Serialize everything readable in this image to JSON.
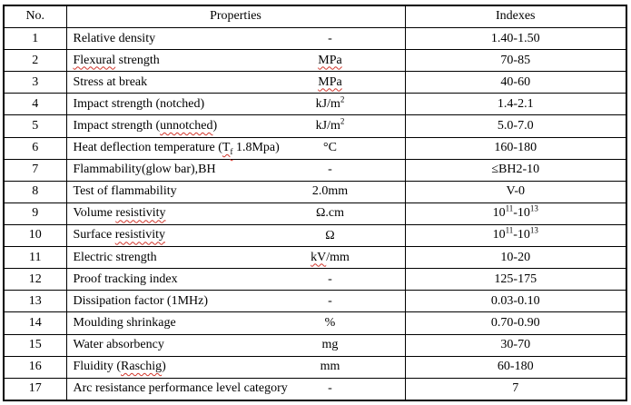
{
  "colors": {
    "background": "#ffffff",
    "text": "#000000",
    "border": "#000000",
    "spellcheck_squiggle": "#d1352b"
  },
  "table": {
    "headers": {
      "no": "No.",
      "properties": "Properties",
      "indexes": "Indexes"
    },
    "rows": [
      {
        "no": "1",
        "name": [
          {
            "t": "Relative density"
          }
        ],
        "unit": [
          {
            "t": "-"
          }
        ],
        "index": [
          {
            "t": "1.40-1.50"
          }
        ]
      },
      {
        "no": "2",
        "name": [
          {
            "t": "Flexural",
            "squiggle": true
          },
          {
            "t": " strength"
          }
        ],
        "unit": [
          {
            "t": "MPa",
            "squiggle": true
          }
        ],
        "index": [
          {
            "t": "70-85"
          }
        ]
      },
      {
        "no": "3",
        "name": [
          {
            "t": "Stress at break"
          }
        ],
        "unit": [
          {
            "t": "MPa",
            "squiggle": true
          }
        ],
        "index": [
          {
            "t": "40-60"
          }
        ]
      },
      {
        "no": "4",
        "name": [
          {
            "t": "Impact strength (notched)"
          }
        ],
        "unit": [
          {
            "t": "kJ/m"
          },
          {
            "t": "2",
            "sup": true
          }
        ],
        "index": [
          {
            "t": "1.4-2.1"
          }
        ]
      },
      {
        "no": "5",
        "name": [
          {
            "t": "Impact strength ("
          },
          {
            "t": "unnotched",
            "squiggle": true
          },
          {
            "t": ")"
          }
        ],
        "unit": [
          {
            "t": "kJ/m"
          },
          {
            "t": "2",
            "sup": true
          }
        ],
        "index": [
          {
            "t": "5.0-7.0"
          }
        ]
      },
      {
        "no": "6",
        "name": [
          {
            "t": "Heat deflection temperature ("
          },
          {
            "t": "T",
            "squiggle": true
          },
          {
            "t": "f",
            "sub": true,
            "squiggle": true
          },
          {
            "t": " 1.8Mpa)"
          }
        ],
        "unit": [
          {
            "t": "°C"
          }
        ],
        "index": [
          {
            "t": "160-180"
          }
        ]
      },
      {
        "no": "7",
        "name": [
          {
            "t": "Flammability(glow bar),BH"
          }
        ],
        "unit": [
          {
            "t": "-"
          }
        ],
        "index": [
          {
            "t": "≤BH2-10"
          }
        ]
      },
      {
        "no": "8",
        "name": [
          {
            "t": "Test of flammability"
          }
        ],
        "unit": [
          {
            "t": "2.0mm"
          }
        ],
        "index": [
          {
            "t": "V-0"
          }
        ]
      },
      {
        "no": "9",
        "name": [
          {
            "t": "Volume "
          },
          {
            "t": "resistivity",
            "squiggle": true
          }
        ],
        "unit": [
          {
            "t": "Ω.cm"
          }
        ],
        "index": [
          {
            "t": "10"
          },
          {
            "t": "11",
            "sup": true
          },
          {
            "t": "-10"
          },
          {
            "t": "13",
            "sup": true
          }
        ]
      },
      {
        "no": "10",
        "name": [
          {
            "t": "Surface "
          },
          {
            "t": "resistivity",
            "squiggle": true
          }
        ],
        "unit": [
          {
            "t": "Ω"
          }
        ],
        "index": [
          {
            "t": "10"
          },
          {
            "t": "11",
            "sup": true
          },
          {
            "t": "-10"
          },
          {
            "t": "13",
            "sup": true
          }
        ]
      },
      {
        "no": "11",
        "name": [
          {
            "t": "Electric strength"
          }
        ],
        "unit": [
          {
            "t": "kV",
            "squiggle": true
          },
          {
            "t": "/mm"
          }
        ],
        "index": [
          {
            "t": "10-20"
          }
        ]
      },
      {
        "no": "12",
        "name": [
          {
            "t": "Proof tracking index"
          }
        ],
        "unit": [
          {
            "t": "-"
          }
        ],
        "index": [
          {
            "t": "125-175"
          }
        ]
      },
      {
        "no": "13",
        "name": [
          {
            "t": "Dissipation factor (1MHz)"
          }
        ],
        "unit": [
          {
            "t": "-"
          }
        ],
        "index": [
          {
            "t": "0.03-0.10"
          }
        ]
      },
      {
        "no": "14",
        "name": [
          {
            "t": "Moulding shrinkage"
          }
        ],
        "unit": [
          {
            "t": "%"
          }
        ],
        "index": [
          {
            "t": "0.70-0.90"
          }
        ]
      },
      {
        "no": "15",
        "name": [
          {
            "t": "Water absorbency"
          }
        ],
        "unit": [
          {
            "t": "mg"
          }
        ],
        "index": [
          {
            "t": "30-70"
          }
        ]
      },
      {
        "no": "16",
        "name": [
          {
            "t": "Fluidity ("
          },
          {
            "t": "Raschig",
            "squiggle": true
          },
          {
            "t": ")"
          }
        ],
        "unit": [
          {
            "t": "mm"
          }
        ],
        "index": [
          {
            "t": "60-180"
          }
        ]
      },
      {
        "no": "17",
        "name": [
          {
            "t": "Arc resistance performance level category"
          }
        ],
        "unit": [
          {
            "t": "-"
          }
        ],
        "index": [
          {
            "t": "7"
          }
        ]
      }
    ]
  }
}
